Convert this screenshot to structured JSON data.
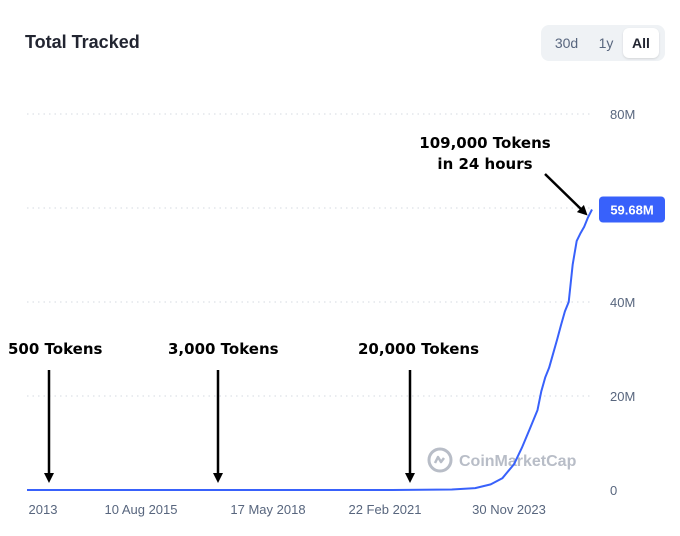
{
  "header": {
    "title": "Total Tracked",
    "ranges": [
      {
        "label": "30d",
        "active": false
      },
      {
        "label": "1y",
        "active": false
      },
      {
        "label": "All",
        "active": true
      }
    ]
  },
  "watermark": {
    "text": "CoinMarketCap",
    "icon": "coinmarketcap-logo-icon"
  },
  "colors": {
    "line": "#3861fb",
    "badge": "#3861fb",
    "grid": "#d5d9e0",
    "text": "#58667e"
  },
  "chart_data": {
    "type": "line",
    "title": "Total Tracked",
    "x_tick_labels": [
      "2013",
      "10 Aug 2015",
      "17 May 2018",
      "22 Feb 2021",
      "30 Nov 2023"
    ],
    "y_tick_labels": [
      "0",
      "20M",
      "40M",
      "60M",
      "80M"
    ],
    "ylim": [
      0,
      80000000
    ],
    "grid": true,
    "current_value_label": "59.68M",
    "series": [
      {
        "x": [
          "2013-04-28",
          "2015-08-10",
          "2018-05-17",
          "2021-02-22",
          "2022-06-01",
          "2022-12-01",
          "2023-04-01",
          "2023-07-01",
          "2023-10-01",
          "2023-12-01",
          "2024-02-01",
          "2024-04-01",
          "2024-05-01",
          "2024-06-01",
          "2024-07-01",
          "2024-08-01",
          "2024-09-01",
          "2024-10-01",
          "2024-11-01",
          "2024-12-01",
          "2025-01-01",
          "2025-02-01",
          "2025-03-01",
          "2025-04-01",
          "2025-05-01",
          "2025-06-01"
        ],
        "y": [
          0,
          0,
          0,
          0,
          100000,
          400000,
          1200000,
          2500000,
          5500000,
          9000000,
          13000000,
          17000000,
          21000000,
          24000000,
          26000000,
          29000000,
          32000000,
          35000000,
          38000000,
          40000000,
          48000000,
          53000000,
          54500000,
          56000000,
          58000000,
          59680000
        ]
      }
    ],
    "annotations": [
      {
        "lines": [
          "500 Tokens"
        ],
        "x": "2013-04-28"
      },
      {
        "lines": [
          "3,000 Tokens"
        ],
        "x": "2017-06-01"
      },
      {
        "lines": [
          "20,000 Tokens"
        ],
        "x": "2021-03-01"
      },
      {
        "lines": [
          "109,000 Tokens",
          "in 24 hours"
        ],
        "x": "2025-06-01"
      }
    ]
  }
}
